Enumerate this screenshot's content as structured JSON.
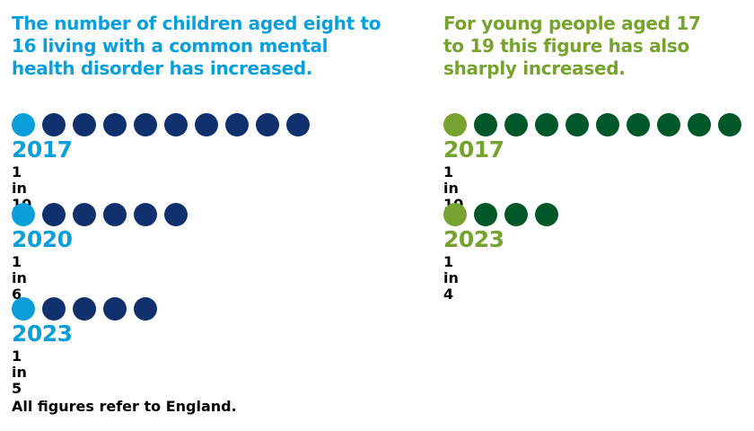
{
  "colors": {
    "children_highlight": "#0a9fdb",
    "children_base": "#10316e",
    "young_highlight": "#78a22f",
    "young_base": "#00582a"
  },
  "chart_data": [
    {
      "type": "pictogram",
      "title": "The number of children aged eight to 16 living with a common mental health disorder has increased.",
      "unit": "dot = 1 child in N, highlighted dot = affected",
      "series": [
        {
          "year": "2017",
          "ratio_label": "1 in 10",
          "affected": 1,
          "total": 10
        },
        {
          "year": "2020",
          "ratio_label": "1 in 6",
          "affected": 1,
          "total": 6
        },
        {
          "year": "2023",
          "ratio_label": "1 in 5",
          "affected": 1,
          "total": 5
        }
      ]
    },
    {
      "type": "pictogram",
      "title": "For young people aged 17 to 19 this figure has also sharply increased.",
      "series": [
        {
          "year": "2017",
          "ratio_label": "1 in 10",
          "affected": 1,
          "total": 10
        },
        {
          "year": "2023",
          "ratio_label": "1 in 4",
          "affected": 1,
          "total": 4
        }
      ]
    }
  ],
  "footer": "All figures refer to England."
}
